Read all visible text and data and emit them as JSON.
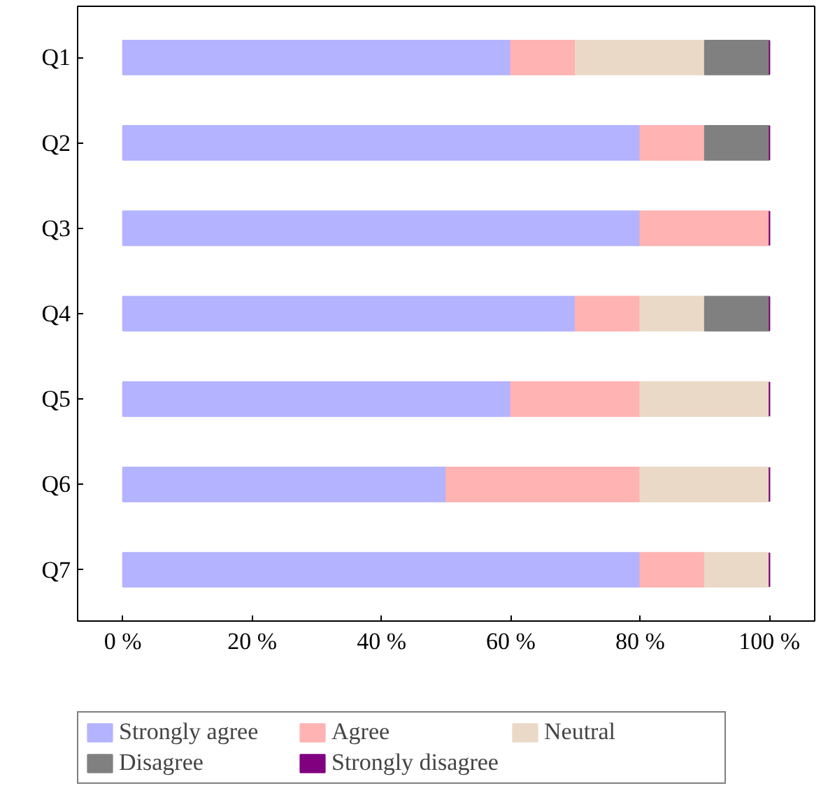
{
  "chart_data": {
    "type": "bar",
    "orientation": "horizontal",
    "stacked": true,
    "categories": [
      "Q1",
      "Q2",
      "Q3",
      "Q4",
      "Q5",
      "Q6",
      "Q7"
    ],
    "series": [
      {
        "name": "Strongly agree",
        "color": "#b3b3ff",
        "values": [
          60,
          80,
          80,
          70,
          60,
          50,
          80
        ]
      },
      {
        "name": "Agree",
        "color": "#ffb3b3",
        "values": [
          10,
          10,
          20,
          10,
          20,
          30,
          10
        ]
      },
      {
        "name": "Neutral",
        "color": "#ead9c6",
        "values": [
          20,
          0,
          0,
          10,
          20,
          20,
          10
        ]
      },
      {
        "name": "Disagree",
        "color": "#808080",
        "values": [
          10,
          10,
          0,
          10,
          0,
          0,
          0
        ]
      },
      {
        "name": "Strongly disagree",
        "color": "#800080",
        "values": [
          0,
          0,
          0,
          0,
          0,
          0,
          0
        ]
      }
    ],
    "xlim": [
      -7,
      107
    ],
    "xticks": [
      {
        "value": 0,
        "label": "0 %"
      },
      {
        "value": 20,
        "label": "20 %"
      },
      {
        "value": 40,
        "label": "40 %"
      },
      {
        "value": 60,
        "label": "60 %"
      },
      {
        "value": 80,
        "label": "80 %"
      },
      {
        "value": 100,
        "label": "100 %"
      }
    ],
    "grid": false,
    "legend": "bottom"
  }
}
